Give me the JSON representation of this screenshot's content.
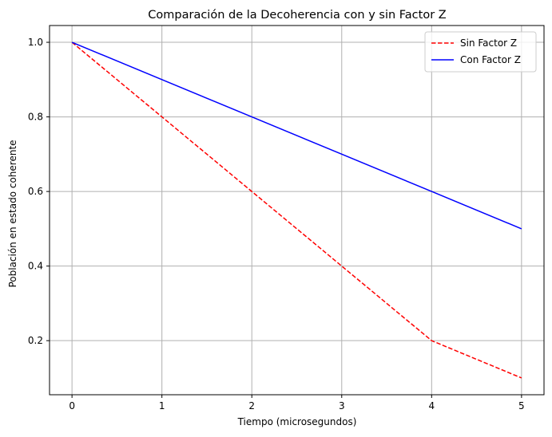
{
  "chart_data": {
    "type": "line",
    "title": "Comparación de la Decoherencia con y sin Factor Z",
    "xlabel": "Tiempo (microsegundos)",
    "ylabel": "Población en estado coherente",
    "xlim": [
      -0.25,
      5.25
    ],
    "ylim": [
      0.055,
      1.045
    ],
    "xticks": [
      0,
      1,
      2,
      3,
      4,
      5
    ],
    "yticks": [
      0.2,
      0.4,
      0.6,
      0.8,
      1.0
    ],
    "xtick_labels": [
      "0",
      "1",
      "2",
      "3",
      "4",
      "5"
    ],
    "ytick_labels": [
      "0.2",
      "0.4",
      "0.6",
      "0.8",
      "1.0"
    ],
    "grid": true,
    "legend_position": "top-right",
    "x": [
      0,
      1,
      2,
      3,
      4,
      5
    ],
    "series": [
      {
        "name": "Sin Factor Z",
        "values": [
          1.0,
          0.8,
          0.6,
          0.4,
          0.2,
          0.1
        ],
        "color": "#ff0000",
        "style": "dashed"
      },
      {
        "name": "Con Factor Z",
        "values": [
          1.0,
          0.9,
          0.8,
          0.7,
          0.6,
          0.5
        ],
        "color": "#0000ff",
        "style": "solid"
      }
    ]
  }
}
